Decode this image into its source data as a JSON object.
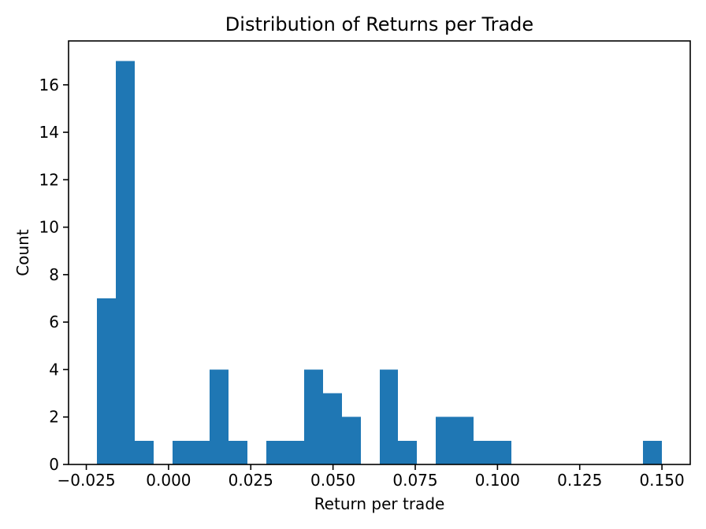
{
  "chart_data": {
    "type": "bar",
    "subtype": "histogram",
    "title": "Distribution of Returns per Trade",
    "xlabel": "Return per trade",
    "ylabel": "Count",
    "bar_color": "#1f77b4",
    "axis_color": "#000000",
    "background_color": "#ffffff",
    "grid": false,
    "legend": null,
    "bin_start": -0.0218,
    "bin_width": 0.005727,
    "counts": [
      7,
      17,
      1,
      0,
      1,
      1,
      4,
      1,
      0,
      1,
      1,
      4,
      3,
      2,
      0,
      4,
      1,
      0,
      2,
      2,
      1,
      1,
      0,
      0,
      0,
      0,
      0,
      0,
      0,
      1
    ],
    "xlim": [
      -0.0304,
      0.1586
    ],
    "ylim": [
      0,
      17.85
    ],
    "x_ticks": [
      -0.025,
      0.0,
      0.025,
      0.05,
      0.075,
      0.1,
      0.125,
      0.15
    ],
    "x_tick_labels": [
      "−0.025",
      "0.000",
      "0.025",
      "0.050",
      "0.075",
      "0.100",
      "0.125",
      "0.150"
    ],
    "y_ticks": [
      0,
      2,
      4,
      6,
      8,
      10,
      12,
      14,
      16
    ],
    "y_tick_labels": [
      "0",
      "2",
      "4",
      "6",
      "8",
      "10",
      "12",
      "14",
      "16"
    ]
  }
}
